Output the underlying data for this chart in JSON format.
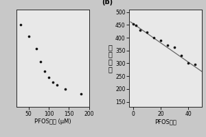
{
  "panel_a": {
    "scatter_x": [
      30,
      50,
      70,
      80,
      90,
      100,
      110,
      120,
      140,
      180
    ],
    "scatter_y": [
      0.335,
      0.3,
      0.263,
      0.225,
      0.196,
      0.178,
      0.163,
      0.155,
      0.143,
      0.128
    ],
    "xlabel": "PFOS浓度 (μM)",
    "xlim": [
      20,
      200
    ],
    "xticks": [
      50,
      100,
      150,
      200
    ],
    "ylim": [
      0.09,
      0.38
    ],
    "yticks": []
  },
  "panel_b": {
    "label": "(b)",
    "scatter_x": [
      0,
      2,
      5,
      10,
      15,
      20,
      25,
      30,
      35,
      40,
      45
    ],
    "scatter_y": [
      455,
      448,
      430,
      422,
      400,
      390,
      370,
      363,
      330,
      300,
      297
    ],
    "line_x": [
      -2,
      50
    ],
    "line_y": [
      462,
      268
    ],
    "xlabel": "PFOS浓度",
    "ylabel_chars": [
      "荧",
      "光",
      "强",
      "度"
    ],
    "xlim": [
      -3,
      50
    ],
    "xticks": [
      0,
      20,
      40
    ],
    "ylim": [
      130,
      510
    ],
    "yticks": [
      150,
      200,
      250,
      300,
      350,
      400,
      450,
      500
    ]
  },
  "dot_color": "#111111",
  "line_color": "#666666",
  "fig_bg": "#c8c8c8",
  "axes_bg": "#e8e8e8"
}
